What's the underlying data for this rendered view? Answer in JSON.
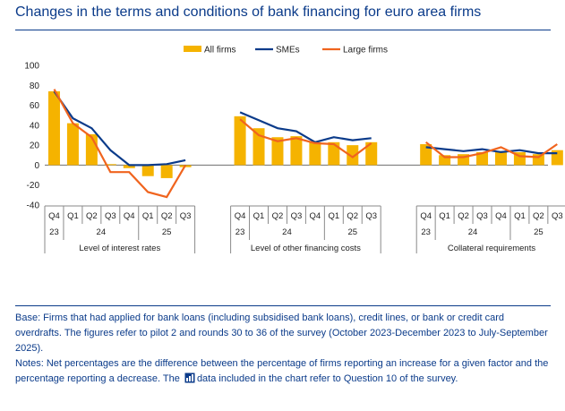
{
  "title": "Changes in the terms and conditions of bank financing for euro area firms",
  "chart_data": {
    "type": "bar",
    "title": "Changes in the terms and conditions of bank financing for euro area firms",
    "ylim": [
      -40,
      100
    ],
    "yticks": [
      -40,
      -20,
      0,
      20,
      40,
      60,
      80,
      100
    ],
    "legend": [
      {
        "name": "All firms",
        "kind": "bar",
        "color": "#f5b300"
      },
      {
        "name": "SMEs",
        "kind": "line",
        "color": "#0b3b8a"
      },
      {
        "name": "Large firms",
        "kind": "line",
        "color": "#f0641e"
      }
    ],
    "quarters": [
      "Q4",
      "Q1",
      "Q2",
      "Q3",
      "Q4",
      "Q1",
      "Q2",
      "Q3"
    ],
    "years": [
      {
        "label": "23",
        "span": 1
      },
      {
        "label": "24",
        "span": 4
      },
      {
        "label": "25",
        "span": 3
      }
    ],
    "groups": [
      {
        "name": "Level of interest rates",
        "series": [
          {
            "name": "All firms",
            "values": [
              74,
              42,
              31,
              1,
              -3,
              -11,
              -13,
              -2
            ]
          },
          {
            "name": "SMEs",
            "values": [
              74,
              47,
              37,
              15,
              0,
              0,
              1,
              5
            ]
          },
          {
            "name": "Large firms",
            "values": [
              76,
              42,
              28,
              -7,
              -7,
              -27,
              -32,
              0
            ]
          }
        ]
      },
      {
        "name": "Level of other financing costs",
        "series": [
          {
            "name": "All firms",
            "values": [
              49,
              37,
              28,
              29,
              23,
              23,
              20,
              23
            ]
          },
          {
            "name": "SMEs",
            "values": [
              53,
              45,
              37,
              34,
              23,
              28,
              25,
              27
            ]
          },
          {
            "name": "Large firms",
            "values": [
              46,
              30,
              24,
              27,
              22,
              21,
              8,
              22
            ]
          }
        ]
      },
      {
        "name": "Collateral requirements",
        "series": [
          {
            "name": "All firms",
            "values": [
              21,
              10,
              11,
              13,
              14,
              13,
              11,
              15
            ]
          },
          {
            "name": "SMEs",
            "values": [
              18,
              16,
              14,
              16,
              13,
              15,
              12,
              12
            ]
          },
          {
            "name": "Large firms",
            "values": [
              23,
              8,
              8,
              12,
              18,
              9,
              8,
              21
            ]
          }
        ]
      }
    ]
  },
  "notes": {
    "base": "Base: Firms that had applied for bank loans (including subsidised bank loans), credit lines, or bank or credit card overdrafts. The figures refer to pilot 2 and rounds 30 to 36 of the survey (October 2023-December 2023 to July-September 2025).",
    "notes_before": "Notes: Net percentages are the difference between the percentage of firms reporting an increase for a given factor and the percentage reporting a decrease. The",
    "data_link": "data",
    "notes_after": "included in the chart refer to Question 10 of the survey."
  }
}
